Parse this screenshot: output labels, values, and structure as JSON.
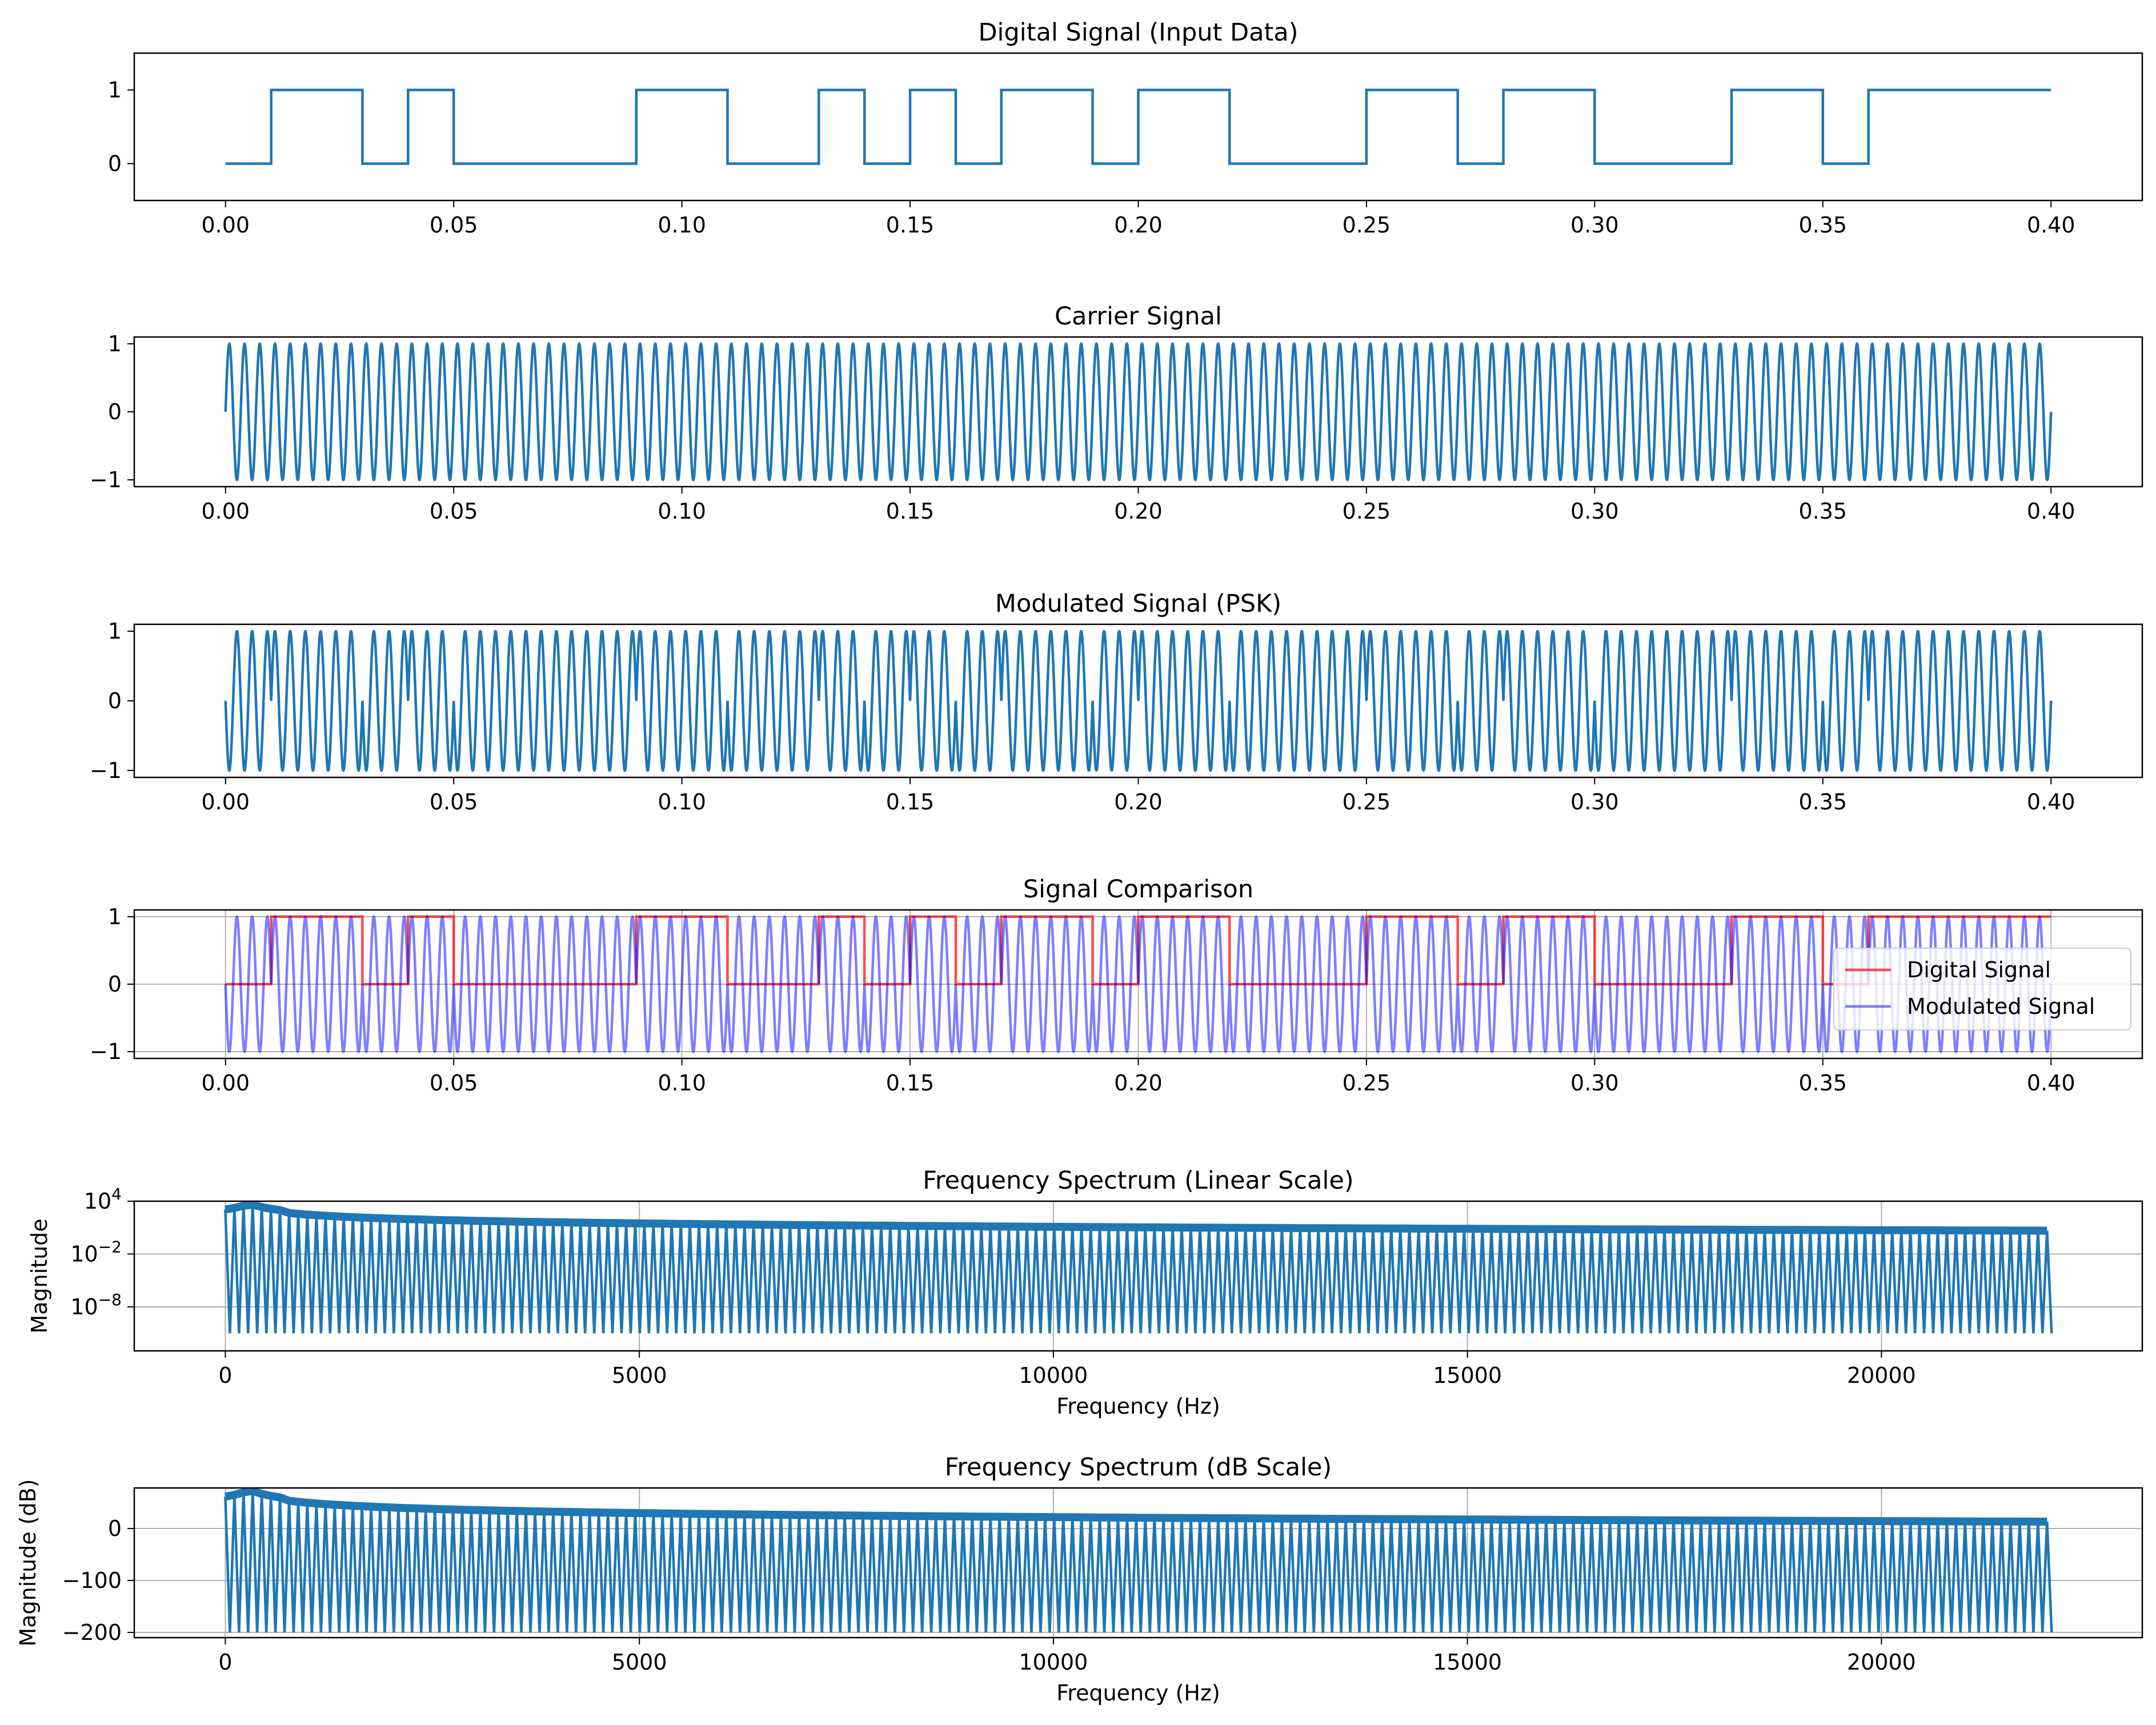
{
  "chart_data": [
    {
      "type": "line",
      "title": "Digital Signal (Input Data)",
      "xlabel": "",
      "ylabel": "",
      "xlim": [
        -0.02,
        0.42
      ],
      "ylim": [
        -0.5,
        1.5
      ],
      "xticks": [
        "0.00",
        "0.05",
        "0.10",
        "0.15",
        "0.20",
        "0.25",
        "0.30",
        "0.35",
        "0.40"
      ],
      "yticks": [
        "0",
        "1"
      ],
      "grid": false,
      "bits": [
        0,
        1,
        1,
        0,
        1,
        0,
        0,
        0,
        0,
        1,
        1,
        0,
        0,
        1,
        0,
        1,
        0,
        1,
        1,
        0,
        1,
        1,
        0,
        0,
        0,
        1,
        1,
        0,
        1,
        1,
        0,
        0,
        0,
        1,
        1,
        0,
        1,
        1,
        1,
        1
      ],
      "bit_duration": 0.01,
      "series": [
        {
          "values_type": "step",
          "color": "#1f77b4"
        }
      ]
    },
    {
      "type": "line",
      "title": "Carrier Signal",
      "xlabel": "",
      "ylabel": "",
      "xlim": [
        -0.02,
        0.42
      ],
      "ylim": [
        -1.1,
        1.1
      ],
      "xticks": [
        "0.00",
        "0.05",
        "0.10",
        "0.15",
        "0.20",
        "0.25",
        "0.30",
        "0.35",
        "0.40"
      ],
      "yticks": [
        "1",
        "0",
        "−1"
      ],
      "grid": false,
      "carrier_frequency_hz": 300,
      "series": [
        {
          "values_type": "sine",
          "color": "#1f77b4"
        }
      ]
    },
    {
      "type": "line",
      "title": "Modulated Signal (PSK)",
      "xlabel": "",
      "ylabel": "",
      "xlim": [
        -0.02,
        0.42
      ],
      "ylim": [
        -1.1,
        1.1
      ],
      "xticks": [
        "0.00",
        "0.05",
        "0.10",
        "0.15",
        "0.20",
        "0.25",
        "0.30",
        "0.35",
        "0.40"
      ],
      "yticks": [
        "1",
        "0",
        "−1"
      ],
      "grid": false,
      "series": [
        {
          "values_type": "psk",
          "color": "#1f77b4"
        }
      ]
    },
    {
      "type": "line",
      "title": "Signal Comparison",
      "xlabel": "",
      "ylabel": "",
      "xlim": [
        -0.02,
        0.42
      ],
      "ylim": [
        -1.1,
        1.1
      ],
      "xticks": [
        "0.00",
        "0.05",
        "0.10",
        "0.15",
        "0.20",
        "0.25",
        "0.30",
        "0.35",
        "0.40"
      ],
      "yticks": [
        "1",
        "0",
        "−1"
      ],
      "grid": true,
      "legend_position": "center-right",
      "series": [
        {
          "name": "Digital Signal",
          "color": "#ff0000",
          "opacity": 0.7
        },
        {
          "name": "Modulated Signal",
          "color": "#0000ff",
          "opacity": 0.5
        }
      ]
    },
    {
      "type": "line",
      "title": "Frequency Spectrum (Linear Scale)",
      "xlabel": "Frequency (Hz)",
      "ylabel": "Magnitude",
      "xlim": [
        -1100,
        23150
      ],
      "ylim_log10": [
        -13,
        4
      ],
      "yscale": "log",
      "xticks": [
        "0",
        "5000",
        "10000",
        "15000",
        "20000"
      ],
      "yticks": [
        "10^4",
        "10^−2",
        "10^−8"
      ],
      "grid": true,
      "series": [
        {
          "color": "#1f77b4"
        }
      ]
    },
    {
      "type": "line",
      "title": "Frequency Spectrum (dB Scale)",
      "xlabel": "Frequency (Hz)",
      "ylabel": "Magnitude (dB)",
      "xlim": [
        -1100,
        23150
      ],
      "ylim": [
        -210,
        78
      ],
      "xticks": [
        "0",
        "5000",
        "10000",
        "15000",
        "20000"
      ],
      "yticks": [
        "0",
        "−100",
        "−200"
      ],
      "grid": true,
      "series": [
        {
          "color": "#1f77b4"
        }
      ]
    }
  ]
}
